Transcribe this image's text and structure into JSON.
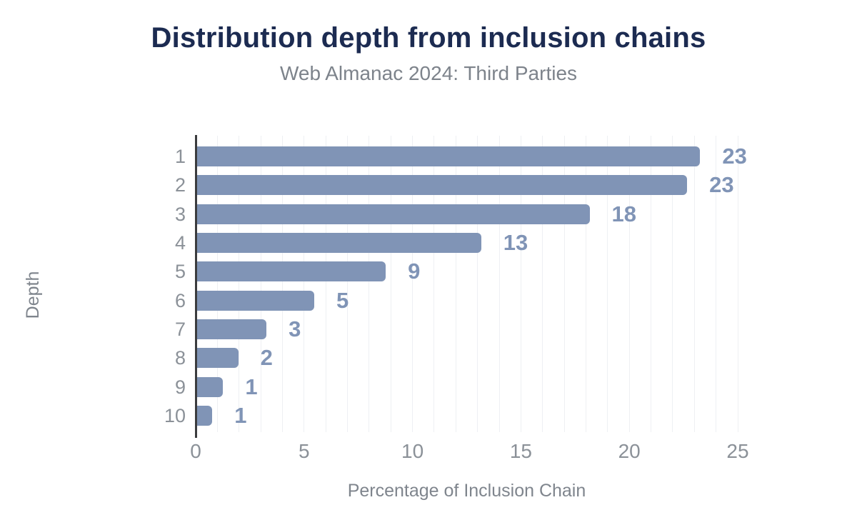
{
  "chart_data": {
    "type": "bar",
    "orientation": "horizontal",
    "title": "Distribution depth from inclusion chains",
    "subtitle": "Web Almanac 2024: Third Parties",
    "xlabel": "Percentage of Inclusion Chain",
    "ylabel": "Depth",
    "categories": [
      "1",
      "2",
      "3",
      "4",
      "5",
      "6",
      "7",
      "8",
      "9",
      "10"
    ],
    "values": [
      23.2,
      22.6,
      18.1,
      13.1,
      8.7,
      5.4,
      3.2,
      1.9,
      1.2,
      0.7
    ],
    "value_labels": [
      "23",
      "23",
      "18",
      "13",
      "9",
      "5",
      "3",
      "2",
      "1",
      "1"
    ],
    "xlim": [
      0,
      25
    ],
    "xticks": [
      0,
      5,
      10,
      15,
      20,
      25
    ],
    "grid": {
      "vertical_every": 1,
      "horizontal": false
    },
    "legend": null,
    "colors": {
      "background": "#ffffff",
      "bar": "#8094b6",
      "value_label": "#8094b6",
      "title": "#1c2b51",
      "subtitle": "#7d838b",
      "axis_title": "#7f858d",
      "tick_label": "#8b9198",
      "gridline": "#eef0f3",
      "axis_line": "#3b3c3e"
    }
  }
}
